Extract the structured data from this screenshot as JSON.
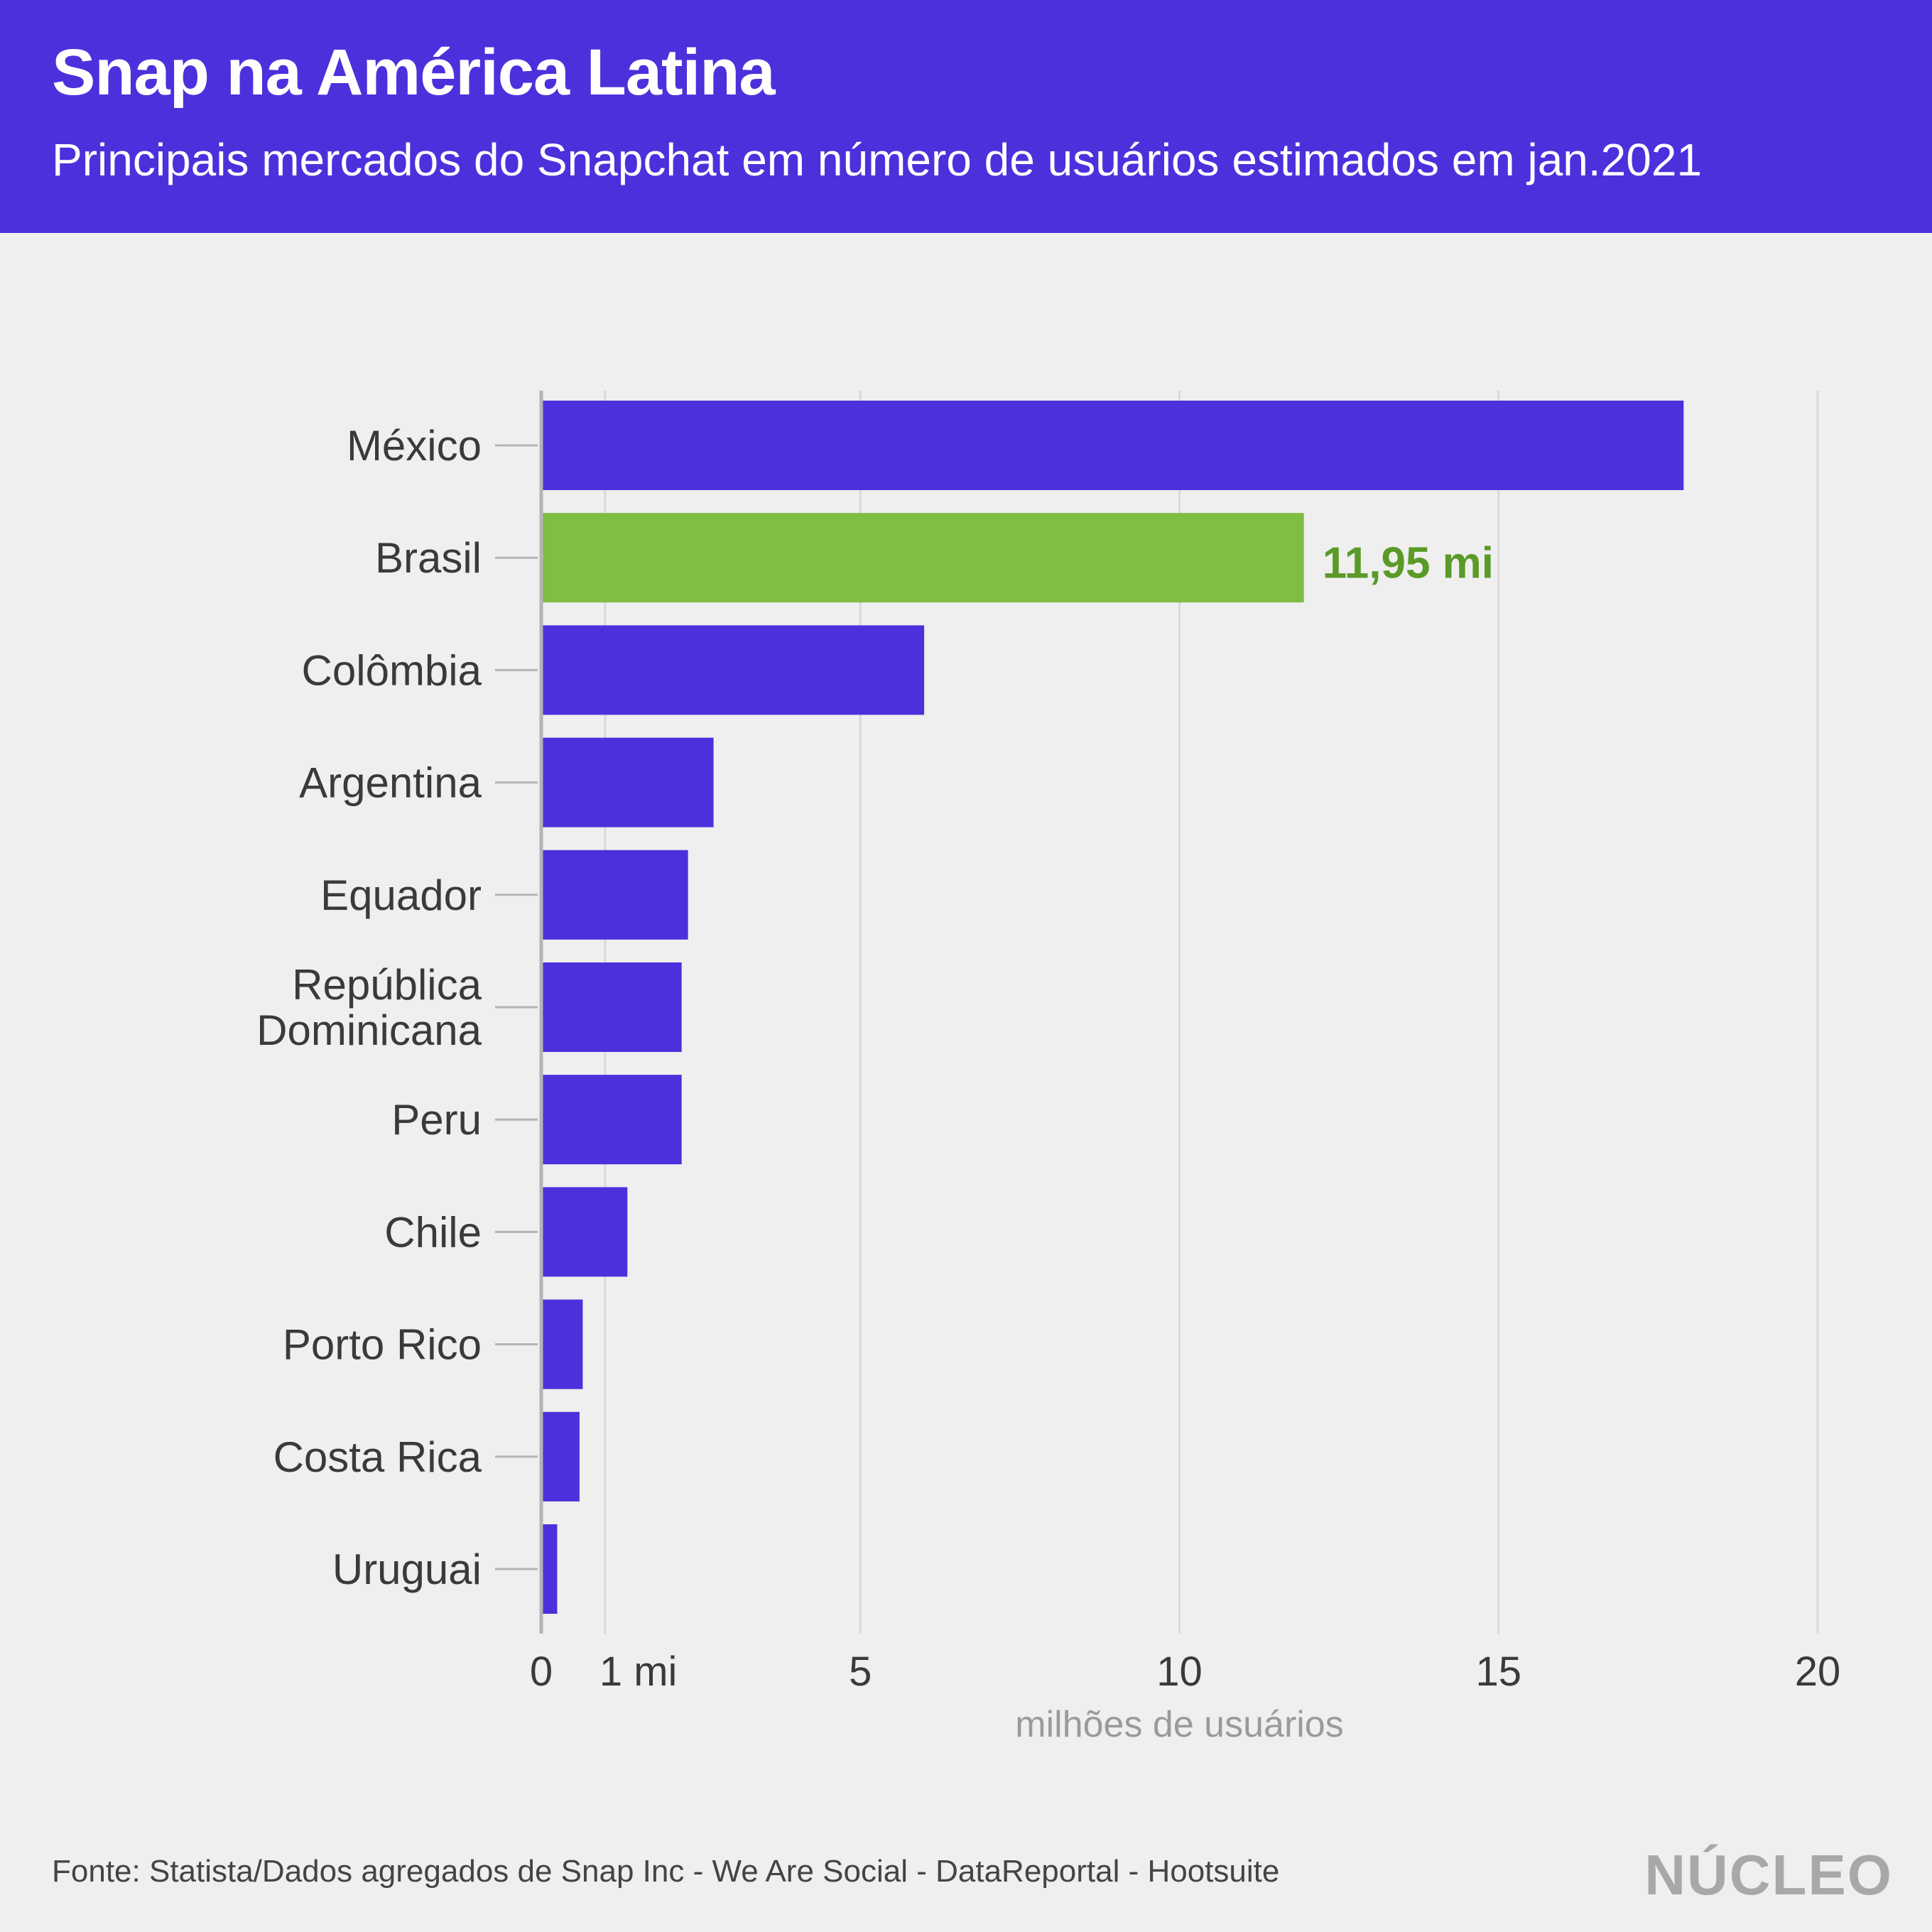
{
  "header": {
    "title": "Snap na América Latina",
    "subtitle": "Principais mercados do Snapchat em número de usuários estimados em jan.2021"
  },
  "chart_data": {
    "type": "bar",
    "orientation": "horizontal",
    "categories": [
      "México",
      "Brasil",
      "Colômbia",
      "Argentina",
      "Equador",
      "República Dominicana",
      "Peru",
      "Chile",
      "Porto Rico",
      "Costa Rica",
      "Uruguai"
    ],
    "values": [
      17.9,
      11.95,
      6.0,
      2.7,
      2.3,
      2.2,
      2.2,
      1.35,
      0.65,
      0.6,
      0.25
    ],
    "xlim": [
      0,
      20
    ],
    "xticks": [
      {
        "value": 0,
        "label": "0"
      },
      {
        "value": 1,
        "label": "1 mi"
      },
      {
        "value": 5,
        "label": "5"
      },
      {
        "value": 10,
        "label": "10"
      },
      {
        "value": 15,
        "label": "15"
      },
      {
        "value": 20,
        "label": "20"
      }
    ],
    "xlabel": "milhões de usuários",
    "highlight": {
      "category": "Brasil",
      "label": "11,95 mi"
    },
    "colors": {
      "bar": "#4b31dc",
      "highlight": "#7fbd43",
      "highlight_text": "#5a9a26",
      "grid": "#d9d9d9"
    },
    "grid": true
  },
  "footer": {
    "source": "Fonte: Statista/Dados agregados de Snap Inc - We Are Social - DataReportal - Hootsuite",
    "logo": "NÚCLEO"
  }
}
